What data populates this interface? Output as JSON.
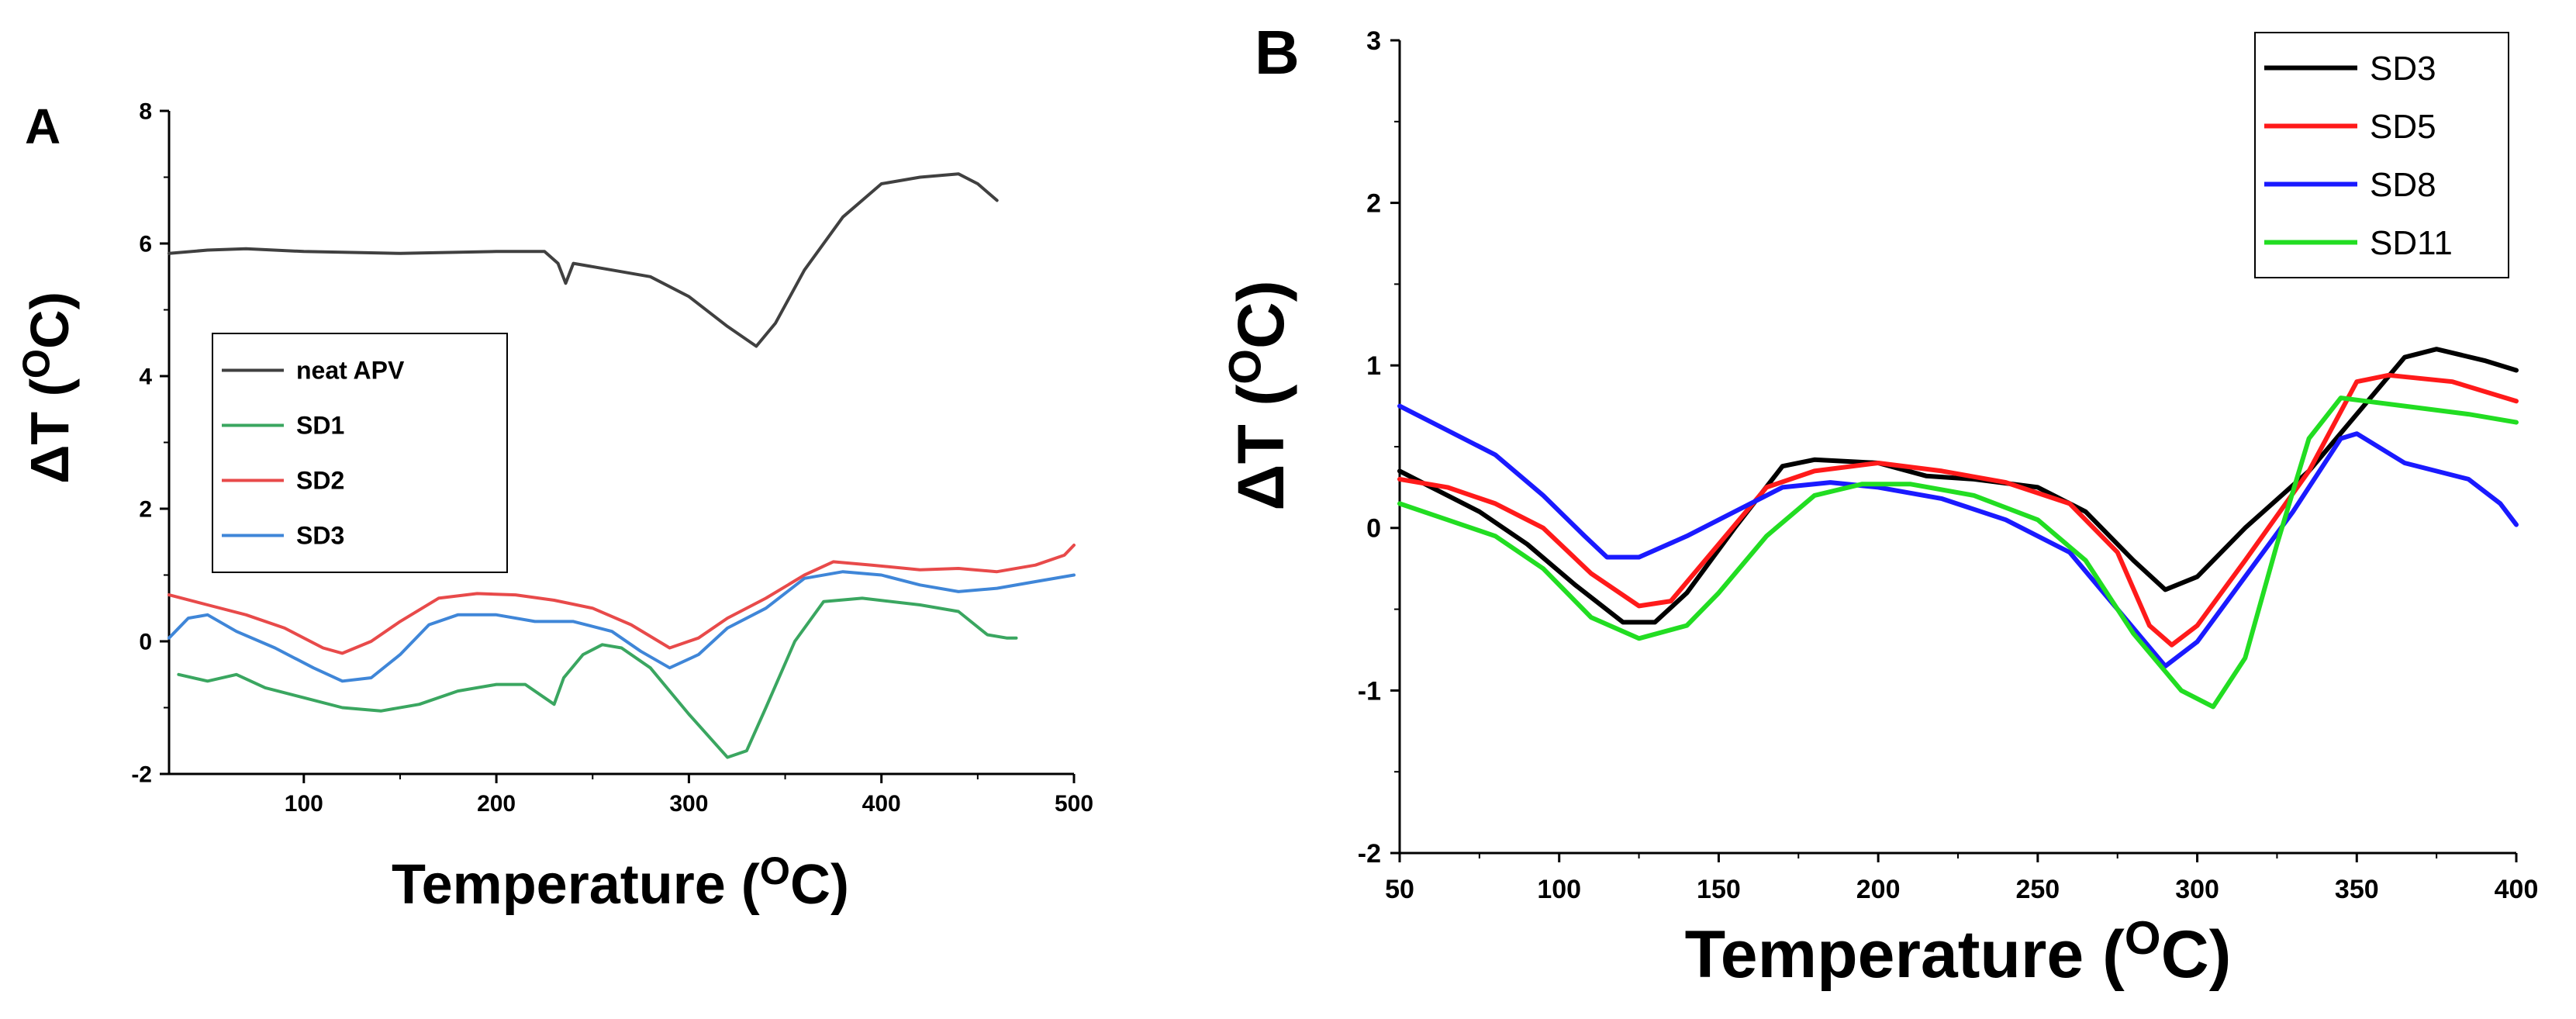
{
  "chart_data": [
    {
      "panel": "A",
      "type": "line",
      "xlabel": "Temperature (",
      "xlabel_sup": "O",
      "xlabel_end": "C)",
      "ylabel": "ΔT (",
      "ylabel_sup": "O",
      "ylabel_end": "C)",
      "xlim": [
        30,
        500
      ],
      "ylim": [
        -2,
        8
      ],
      "xticks": [
        100,
        200,
        300,
        400,
        500
      ],
      "yticks": [
        -2,
        0,
        2,
        4,
        6,
        8
      ],
      "legend_position": "middle-left",
      "series": [
        {
          "name": "neat APV",
          "color": "#404040",
          "points": [
            [
              30,
              5.85
            ],
            [
              50,
              5.9
            ],
            [
              70,
              5.92
            ],
            [
              100,
              5.88
            ],
            [
              150,
              5.85
            ],
            [
              200,
              5.88
            ],
            [
              225,
              5.88
            ],
            [
              232,
              5.7
            ],
            [
              236,
              5.4
            ],
            [
              240,
              5.7
            ],
            [
              260,
              5.6
            ],
            [
              280,
              5.5
            ],
            [
              300,
              5.2
            ],
            [
              320,
              4.75
            ],
            [
              335,
              4.45
            ],
            [
              345,
              4.8
            ],
            [
              360,
              5.6
            ],
            [
              380,
              6.4
            ],
            [
              400,
              6.9
            ],
            [
              420,
              7.0
            ],
            [
              440,
              7.05
            ],
            [
              450,
              6.9
            ],
            [
              460,
              6.65
            ]
          ]
        },
        {
          "name": "SD1",
          "color": "#3aa660",
          "points": [
            [
              35,
              -0.5
            ],
            [
              50,
              -0.6
            ],
            [
              65,
              -0.5
            ],
            [
              80,
              -0.7
            ],
            [
              100,
              -0.85
            ],
            [
              120,
              -1.0
            ],
            [
              140,
              -1.05
            ],
            [
              160,
              -0.95
            ],
            [
              180,
              -0.75
            ],
            [
              200,
              -0.65
            ],
            [
              215,
              -0.65
            ],
            [
              225,
              -0.85
            ],
            [
              230,
              -0.95
            ],
            [
              235,
              -0.55
            ],
            [
              245,
              -0.2
            ],
            [
              255,
              -0.05
            ],
            [
              265,
              -0.1
            ],
            [
              280,
              -0.4
            ],
            [
              300,
              -1.1
            ],
            [
              320,
              -1.75
            ],
            [
              330,
              -1.65
            ],
            [
              340,
              -1.0
            ],
            [
              355,
              0.0
            ],
            [
              370,
              0.6
            ],
            [
              390,
              0.65
            ],
            [
              420,
              0.55
            ],
            [
              440,
              0.45
            ],
            [
              455,
              0.1
            ],
            [
              465,
              0.05
            ],
            [
              470,
              0.05
            ]
          ]
        },
        {
          "name": "SD2",
          "color": "#e84a4a",
          "points": [
            [
              30,
              0.7
            ],
            [
              50,
              0.55
            ],
            [
              70,
              0.4
            ],
            [
              90,
              0.2
            ],
            [
              110,
              -0.1
            ],
            [
              120,
              -0.18
            ],
            [
              135,
              0.0
            ],
            [
              150,
              0.3
            ],
            [
              170,
              0.65
            ],
            [
              190,
              0.72
            ],
            [
              210,
              0.7
            ],
            [
              230,
              0.62
            ],
            [
              250,
              0.5
            ],
            [
              270,
              0.25
            ],
            [
              290,
              -0.1
            ],
            [
              305,
              0.05
            ],
            [
              320,
              0.35
            ],
            [
              340,
              0.65
            ],
            [
              360,
              1.0
            ],
            [
              375,
              1.2
            ],
            [
              395,
              1.15
            ],
            [
              420,
              1.08
            ],
            [
              440,
              1.1
            ],
            [
              460,
              1.05
            ],
            [
              480,
              1.15
            ],
            [
              495,
              1.3
            ],
            [
              500,
              1.45
            ]
          ]
        },
        {
          "name": "SD3",
          "color": "#3f86d8",
          "points": [
            [
              30,
              0.05
            ],
            [
              40,
              0.35
            ],
            [
              50,
              0.4
            ],
            [
              65,
              0.15
            ],
            [
              85,
              -0.1
            ],
            [
              105,
              -0.4
            ],
            [
              120,
              -0.6
            ],
            [
              135,
              -0.55
            ],
            [
              150,
              -0.2
            ],
            [
              165,
              0.25
            ],
            [
              180,
              0.4
            ],
            [
              200,
              0.4
            ],
            [
              220,
              0.3
            ],
            [
              240,
              0.3
            ],
            [
              260,
              0.15
            ],
            [
              275,
              -0.15
            ],
            [
              290,
              -0.4
            ],
            [
              305,
              -0.2
            ],
            [
              320,
              0.2
            ],
            [
              340,
              0.5
            ],
            [
              360,
              0.95
            ],
            [
              380,
              1.05
            ],
            [
              400,
              1.0
            ],
            [
              420,
              0.85
            ],
            [
              440,
              0.75
            ],
            [
              460,
              0.8
            ],
            [
              480,
              0.9
            ],
            [
              500,
              1.0
            ]
          ]
        }
      ]
    },
    {
      "panel": "B",
      "type": "line",
      "xlabel": "Temperature (",
      "xlabel_sup": "O",
      "xlabel_end": "C)",
      "ylabel": "ΔT (",
      "ylabel_sup": "O",
      "ylabel_end": "C)",
      "xlim": [
        50,
        400
      ],
      "ylim": [
        -2,
        3
      ],
      "xticks": [
        50,
        100,
        150,
        200,
        250,
        300,
        350,
        400
      ],
      "yticks": [
        -2,
        -1,
        0,
        1,
        2,
        3
      ],
      "legend_position": "top-right",
      "series": [
        {
          "name": "SD3",
          "color": "#000000",
          "points": [
            [
              50,
              0.35
            ],
            [
              60,
              0.25
            ],
            [
              75,
              0.1
            ],
            [
              90,
              -0.1
            ],
            [
              105,
              -0.35
            ],
            [
              120,
              -0.58
            ],
            [
              130,
              -0.58
            ],
            [
              140,
              -0.4
            ],
            [
              155,
              0.0
            ],
            [
              170,
              0.38
            ],
            [
              180,
              0.42
            ],
            [
              200,
              0.4
            ],
            [
              215,
              0.32
            ],
            [
              230,
              0.3
            ],
            [
              250,
              0.25
            ],
            [
              265,
              0.1
            ],
            [
              280,
              -0.2
            ],
            [
              290,
              -0.38
            ],
            [
              300,
              -0.3
            ],
            [
              315,
              0.0
            ],
            [
              335,
              0.35
            ],
            [
              350,
              0.7
            ],
            [
              365,
              1.05
            ],
            [
              375,
              1.1
            ],
            [
              390,
              1.03
            ],
            [
              400,
              0.97
            ]
          ]
        },
        {
          "name": "SD5",
          "color": "#ff1a1a",
          "points": [
            [
              50,
              0.3
            ],
            [
              65,
              0.25
            ],
            [
              80,
              0.15
            ],
            [
              95,
              0.0
            ],
            [
              110,
              -0.28
            ],
            [
              125,
              -0.48
            ],
            [
              135,
              -0.45
            ],
            [
              150,
              -0.1
            ],
            [
              165,
              0.25
            ],
            [
              180,
              0.35
            ],
            [
              200,
              0.4
            ],
            [
              220,
              0.35
            ],
            [
              240,
              0.28
            ],
            [
              260,
              0.15
            ],
            [
              275,
              -0.15
            ],
            [
              285,
              -0.6
            ],
            [
              292,
              -0.72
            ],
            [
              300,
              -0.6
            ],
            [
              315,
              -0.2
            ],
            [
              335,
              0.35
            ],
            [
              350,
              0.9
            ],
            [
              360,
              0.94
            ],
            [
              380,
              0.9
            ],
            [
              400,
              0.78
            ]
          ]
        },
        {
          "name": "SD8",
          "color": "#1a1aff",
          "points": [
            [
              50,
              0.75
            ],
            [
              65,
              0.6
            ],
            [
              80,
              0.45
            ],
            [
              95,
              0.2
            ],
            [
              108,
              -0.05
            ],
            [
              115,
              -0.18
            ],
            [
              125,
              -0.18
            ],
            [
              140,
              -0.05
            ],
            [
              155,
              0.1
            ],
            [
              170,
              0.25
            ],
            [
              185,
              0.28
            ],
            [
              200,
              0.25
            ],
            [
              220,
              0.18
            ],
            [
              240,
              0.05
            ],
            [
              260,
              -0.15
            ],
            [
              275,
              -0.5
            ],
            [
              290,
              -0.85
            ],
            [
              300,
              -0.7
            ],
            [
              315,
              -0.3
            ],
            [
              330,
              0.1
            ],
            [
              345,
              0.55
            ],
            [
              350,
              0.58
            ],
            [
              365,
              0.4
            ],
            [
              385,
              0.3
            ],
            [
              395,
              0.15
            ],
            [
              400,
              0.02
            ]
          ]
        },
        {
          "name": "SD11",
          "color": "#22dd22",
          "points": [
            [
              50,
              0.15
            ],
            [
              65,
              0.05
            ],
            [
              80,
              -0.05
            ],
            [
              95,
              -0.25
            ],
            [
              110,
              -0.55
            ],
            [
              125,
              -0.68
            ],
            [
              140,
              -0.6
            ],
            [
              150,
              -0.4
            ],
            [
              165,
              -0.05
            ],
            [
              180,
              0.2
            ],
            [
              195,
              0.27
            ],
            [
              210,
              0.27
            ],
            [
              230,
              0.2
            ],
            [
              250,
              0.05
            ],
            [
              265,
              -0.2
            ],
            [
              280,
              -0.65
            ],
            [
              295,
              -1.0
            ],
            [
              305,
              -1.1
            ],
            [
              315,
              -0.8
            ],
            [
              325,
              -0.1
            ],
            [
              335,
              0.55
            ],
            [
              345,
              0.8
            ],
            [
              365,
              0.75
            ],
            [
              385,
              0.7
            ],
            [
              400,
              0.65
            ]
          ]
        }
      ]
    }
  ]
}
